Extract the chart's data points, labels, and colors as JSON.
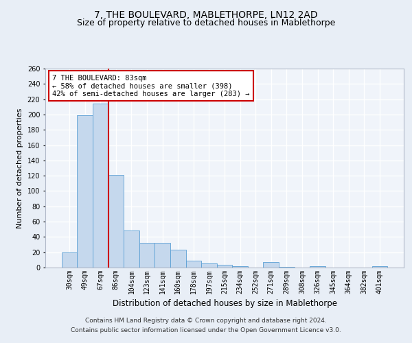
{
  "title": "7, THE BOULEVARD, MABLETHORPE, LN12 2AD",
  "subtitle": "Size of property relative to detached houses in Mablethorpe",
  "xlabel": "Distribution of detached houses by size in Mablethorpe",
  "ylabel": "Number of detached properties",
  "footer1": "Contains HM Land Registry data © Crown copyright and database right 2024.",
  "footer2": "Contains public sector information licensed under the Open Government Licence v3.0.",
  "categories": [
    "30sqm",
    "49sqm",
    "67sqm",
    "86sqm",
    "104sqm",
    "123sqm",
    "141sqm",
    "160sqm",
    "178sqm",
    "197sqm",
    "215sqm",
    "234sqm",
    "252sqm",
    "271sqm",
    "289sqm",
    "308sqm",
    "326sqm",
    "345sqm",
    "364sqm",
    "382sqm",
    "401sqm"
  ],
  "values": [
    20,
    199,
    214,
    121,
    48,
    32,
    32,
    23,
    9,
    5,
    4,
    2,
    0,
    7,
    1,
    0,
    2,
    0,
    0,
    0,
    2
  ],
  "bar_color": "#c5d8ed",
  "bar_edge_color": "#5a9fd4",
  "vline_x_index": 2.5,
  "vline_color": "#cc0000",
  "annotation_text": "7 THE BOULEVARD: 83sqm\n← 58% of detached houses are smaller (398)\n42% of semi-detached houses are larger (283) →",
  "annotation_box_color": "#ffffff",
  "annotation_box_edge": "#cc0000",
  "ylim": [
    0,
    260
  ],
  "yticks": [
    0,
    20,
    40,
    60,
    80,
    100,
    120,
    140,
    160,
    180,
    200,
    220,
    240,
    260
  ],
  "bg_color": "#e8eef6",
  "plot_bg": "#f0f4fa",
  "grid_color": "#ffffff",
  "title_fontsize": 10,
  "subtitle_fontsize": 9,
  "xlabel_fontsize": 8.5,
  "ylabel_fontsize": 8,
  "tick_fontsize": 7,
  "footer_fontsize": 6.5,
  "annotation_fontsize": 7.5
}
